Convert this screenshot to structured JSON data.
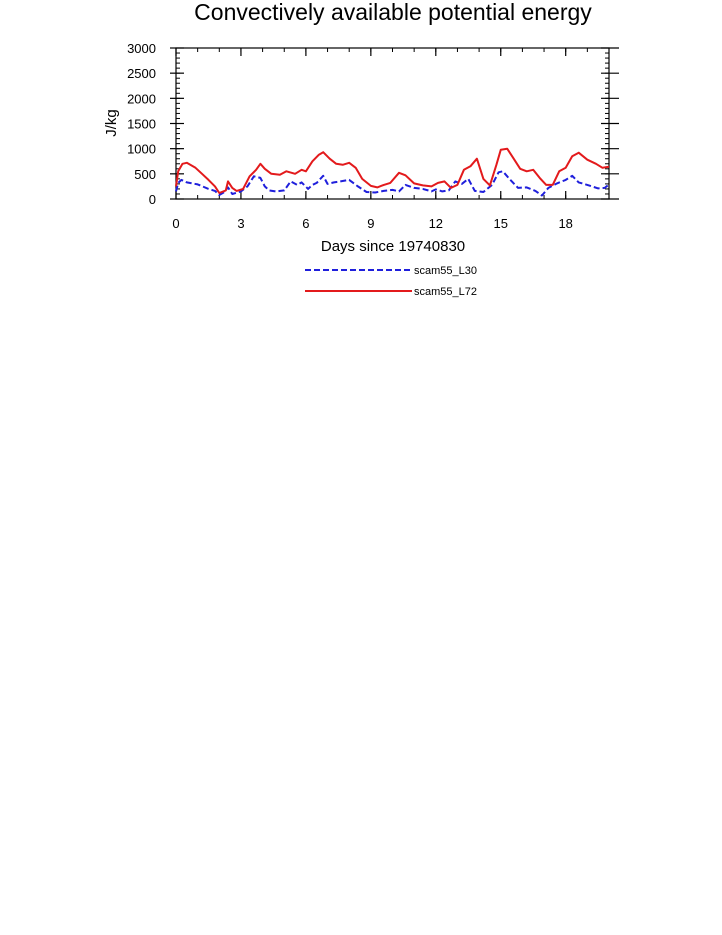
{
  "chart_data": {
    "type": "line",
    "title": "Convectively available potential energy",
    "xlabel": "Days since 19740830",
    "ylabel": "J/kg",
    "xlim": [
      0,
      20
    ],
    "ylim": [
      0,
      3000
    ],
    "x_ticks": [
      0,
      3,
      6,
      9,
      12,
      15,
      18
    ],
    "x_tick_labels": [
      "0",
      "3",
      "6",
      "9",
      "12",
      "15",
      "18"
    ],
    "y_ticks": [
      0,
      500,
      1000,
      1500,
      2000,
      2500,
      3000
    ],
    "y_tick_labels": [
      "0",
      "500",
      "1000",
      "1500",
      "2000",
      "2500",
      "3000"
    ],
    "grid": false,
    "legend_position": "bottom-center",
    "series": [
      {
        "name": "scam55_L30",
        "color": "#1f1fdc",
        "style": "dashed",
        "x": [
          0,
          0.1,
          0.25,
          0.5,
          1.0,
          1.5,
          1.8,
          2.0,
          2.2,
          2.4,
          2.6,
          3.0,
          3.3,
          3.6,
          3.9,
          4.1,
          4.3,
          4.6,
          5.0,
          5.3,
          5.6,
          5.8,
          6.1,
          6.3,
          6.5,
          6.8,
          7.0,
          7.3,
          7.6,
          8.0,
          8.4,
          8.8,
          9.2,
          9.6,
          10.0,
          10.3,
          10.6,
          11.0,
          11.4,
          11.8,
          12.0,
          12.3,
          12.6,
          12.9,
          13.2,
          13.5,
          13.8,
          14.2,
          14.6,
          14.9,
          15.1,
          15.4,
          15.8,
          16.2,
          16.6,
          16.9,
          17.2,
          17.6,
          18.0,
          18.3,
          18.6,
          19.0,
          19.5,
          19.8,
          20.0
        ],
        "y": [
          150,
          320,
          380,
          330,
          290,
          200,
          160,
          80,
          130,
          230,
          100,
          150,
          250,
          450,
          420,
          250,
          170,
          150,
          170,
          350,
          280,
          330,
          200,
          280,
          320,
          460,
          300,
          330,
          350,
          380,
          250,
          140,
          130,
          160,
          180,
          150,
          280,
          220,
          200,
          150,
          190,
          150,
          170,
          350,
          300,
          400,
          160,
          140,
          280,
          530,
          550,
          400,
          220,
          230,
          160,
          70,
          220,
          310,
          380,
          460,
          330,
          280,
          210,
          220,
          290
        ]
      },
      {
        "name": "scam55_L72",
        "color": "#e31a1c",
        "style": "solid",
        "x": [
          0,
          0.1,
          0.3,
          0.5,
          0.9,
          1.2,
          1.5,
          1.8,
          2.0,
          2.3,
          2.4,
          2.6,
          2.8,
          3.1,
          3.4,
          3.7,
          3.9,
          4.1,
          4.4,
          4.8,
          5.1,
          5.5,
          5.8,
          6.0,
          6.3,
          6.6,
          6.8,
          7.1,
          7.4,
          7.7,
          8.0,
          8.3,
          8.6,
          9.0,
          9.3,
          9.6,
          9.9,
          10.3,
          10.6,
          11.0,
          11.4,
          11.8,
          12.1,
          12.4,
          12.7,
          13.0,
          13.3,
          13.6,
          13.9,
          14.2,
          14.5,
          14.8,
          15.0,
          15.3,
          15.6,
          15.9,
          16.2,
          16.5,
          16.8,
          17.1,
          17.4,
          17.7,
          18.0,
          18.3,
          18.6,
          19.0,
          19.4,
          19.7,
          20.0
        ],
        "y": [
          250,
          550,
          700,
          720,
          620,
          500,
          380,
          250,
          120,
          170,
          350,
          220,
          160,
          200,
          450,
          580,
          700,
          600,
          500,
          480,
          550,
          500,
          580,
          550,
          750,
          880,
          930,
          800,
          700,
          680,
          720,
          620,
          400,
          260,
          230,
          280,
          320,
          520,
          470,
          310,
          270,
          250,
          320,
          350,
          220,
          280,
          580,
          650,
          800,
          400,
          270,
          680,
          980,
          1000,
          800,
          600,
          550,
          580,
          420,
          280,
          280,
          550,
          620,
          850,
          920,
          780,
          700,
          620,
          640
        ]
      }
    ]
  }
}
